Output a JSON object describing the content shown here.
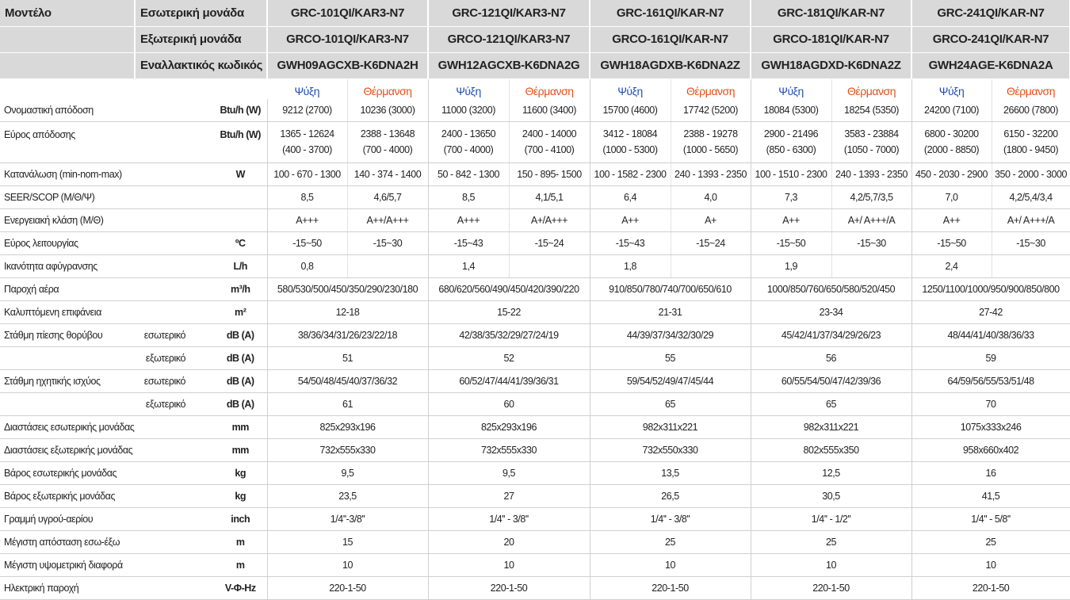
{
  "header": {
    "model_label": "Μοντέλο",
    "indoor_label": "Εσωτερική μονάδα",
    "outdoor_label": "Εξωτερική μονάδα",
    "alt_label": "Εναλλακτικός κωδικός",
    "models": [
      {
        "indoor": "GRC-101QI/KAR3-N7",
        "outdoor": "GRCO-101QI/KAR3-N7",
        "alt": "GWH09AGCXB-K6DNA2H"
      },
      {
        "indoor": "GRC-121QI/KAR3-N7",
        "outdoor": "GRCO-121QI/KAR3-N7",
        "alt": "GWH12AGCXB-K6DNA2G"
      },
      {
        "indoor": "GRC-161QI/KAR-N7",
        "outdoor": "GRCO-161QI/KAR-N7",
        "alt": "GWH18AGDXB-K6DNA2Z"
      },
      {
        "indoor": "GRC-181QI/KAR-N7",
        "outdoor": "GRCO-181QI/KAR-N7",
        "alt": "GWH18AGDXD-K6DNA2Z"
      },
      {
        "indoor": "GRC-241QI/KAR-N7",
        "outdoor": "GRCO-241QI/KAR-N7",
        "alt": "GWH24AGE-K6DNA2A"
      }
    ],
    "cooling": "Ψύξη",
    "heating": "Θέρμανση"
  },
  "rows": [
    {
      "label": "Ονομαστική απόδοση",
      "unit": "Btu/h (W)",
      "cells": [
        "9212 (2700)",
        "10236 (3000)",
        "11000 (3200)",
        "11600 (3400)",
        "15700 (4600)",
        "17742 (5200)",
        "18084 (5300)",
        "18254 (5350)",
        "24200 (7100)",
        "26600 (7800)"
      ]
    },
    {
      "label": "Εύρος απόδοσης",
      "unit": "Btu/h (W)",
      "cells": [
        [
          "1365 - 12624",
          "(400 - 3700)"
        ],
        [
          "2388 - 13648",
          "(700 - 4000)"
        ],
        [
          "2400 - 13650",
          "(700 - 4000)"
        ],
        [
          "2400 - 14000",
          "(700 - 4100)"
        ],
        [
          "3412 - 18084",
          "(1000 - 5300)"
        ],
        [
          "2388 - 19278",
          "(1000 - 5650)"
        ],
        [
          "2900 - 21496",
          "(850 - 6300)"
        ],
        [
          "3583 - 23884",
          "(1050 - 7000)"
        ],
        [
          "6800 - 30200",
          "(2000 - 8850)"
        ],
        [
          "6150 - 32200",
          "(1800 - 9450)"
        ]
      ]
    },
    {
      "label": "Κατανάλωση (min-nom-max)",
      "unit": "W",
      "cells": [
        "100 - 670 - 1300",
        "140 - 374 - 1400",
        "50 - 842 - 1300",
        "150 - 895- 1500",
        "100 - 1582 - 2300",
        "240 - 1393 - 2350",
        "100 - 1510 - 2300",
        "240 - 1393 - 2350",
        "450 - 2030 - 2900",
        "350 - 2000 - 3000"
      ]
    },
    {
      "label": "SEER/SCOP (Μ/Θ/Ψ)",
      "cells": [
        "8,5",
        "4,6/5,7",
        "8,5",
        "4,1/5,1",
        "6,4",
        "4,0",
        "7,3",
        "4,2/5,7/3,5",
        "7,0",
        "4,2/5,4/3,4"
      ]
    },
    {
      "label": "Ενεργειακή κλάση (Μ/Θ)",
      "cells": [
        "A+++",
        "A++/A+++",
        "A+++",
        "A+/A+++",
        "A++",
        "A+",
        "A++",
        "A+/ A+++/A",
        "A++",
        "A+/ A+++/A"
      ]
    },
    {
      "label": "Εύρος λειτουργίας",
      "unit": "ºC",
      "cells": [
        "-15~50",
        "-15~30",
        "-15~43",
        "-15~24",
        "-15~43",
        "-15~24",
        "-15~50",
        "-15~30",
        "-15~50",
        "-15~30"
      ]
    },
    {
      "label": "Ικανότητα αφύγρανσης",
      "unit": "L/h",
      "cooling_cells": [
        "0,8",
        "1,4",
        "1,8",
        "1,9",
        "2,4"
      ]
    },
    {
      "label": "Παροχή αέρα",
      "unit": "m³/h",
      "cells": [
        "580/530/500/450/350/290/230/180",
        "680/620/560/490/450/420/390/220",
        "910/850/780/740/700/650/610",
        "1000/850/760/650/580/520/450",
        "1250/1100/1000/950/900/850/800"
      ]
    },
    {
      "label": "Καλυπτόμενη επιφάνεια",
      "unit": "m²",
      "cells": [
        "12-18",
        "15-22",
        "21-31",
        "23-34",
        "27-42"
      ]
    },
    {
      "label": "Στάθμη πίεσης θορύβου",
      "sublabel": "εσωτερικό",
      "unit": "dB (A)",
      "cells": [
        "38/36/34/31/26/23/22/18",
        "42/38/35/32/29/27/24/19",
        "44/39/37/34/32/30/29",
        "45/42/41/37/34/29/26/23",
        "48/44/41/40/38/36/33"
      ]
    },
    {
      "sublabel": "εξωτερικό",
      "unit": "dB (A)",
      "cells": [
        "51",
        "52",
        "55",
        "56",
        "59"
      ]
    },
    {
      "label": "Στάθμη ηχητικής ισχύος",
      "sublabel": "εσωτερικό",
      "unit": "dB (A)",
      "cells": [
        "54/50/48/45/40/37/36/32",
        "60/52/47/44/41/39/36/31",
        "59/54/52/49/47/45/44",
        "60/55/54/50/47/42/39/36",
        "64/59/56/55/53/51/48"
      ]
    },
    {
      "sublabel": "εξωτερικό",
      "unit": "dB (A)",
      "cells": [
        "61",
        "60",
        "65",
        "65",
        "70"
      ]
    },
    {
      "label": "Διαστάσεις εσωτερικής μονάδας",
      "unit": "mm",
      "cells": [
        "825x293x196",
        "825x293x196",
        "982x311x221",
        "982x311x221",
        "1075x333x246"
      ]
    },
    {
      "label": "Διαστάσεις εξωτερικής μονάδας",
      "unit": "mm",
      "cells": [
        "732x555x330",
        "732x555x330",
        "732x550x330",
        "802x555x350",
        "958x660x402"
      ]
    },
    {
      "label": "Βάρος εσωτερικής μονάδας",
      "unit": "kg",
      "cells": [
        "9,5",
        "9,5",
        "13,5",
        "12,5",
        "16"
      ]
    },
    {
      "label": "Βάρος εξωτερικής μονάδας",
      "unit": "kg",
      "cells": [
        "23,5",
        "27",
        "26,5",
        "30,5",
        "41,5"
      ]
    },
    {
      "label": "Γραμμή υγρού-αερίου",
      "unit": "inch",
      "cells": [
        "1/4''-3/8''",
        "1/4'' - 3/8''",
        "1/4'' - 3/8''",
        "1/4'' - 1/2''",
        "1/4'' - 5/8''"
      ]
    },
    {
      "label": "Μέγιστη απόσταση εσω-έξω",
      "unit": "m",
      "cells": [
        "15",
        "20",
        "25",
        "25",
        "25"
      ]
    },
    {
      "label": "Μέγιστη υψομετρική διαφορά",
      "unit": "m",
      "cells": [
        "10",
        "10",
        "10",
        "10",
        "10"
      ]
    },
    {
      "label": "Ηλεκτρική παροχή",
      "unit": "V-Φ-Hz",
      "cells": [
        "220-1-50",
        "220-1-50",
        "220-1-50",
        "220-1-50",
        "220-1-50"
      ]
    }
  ]
}
